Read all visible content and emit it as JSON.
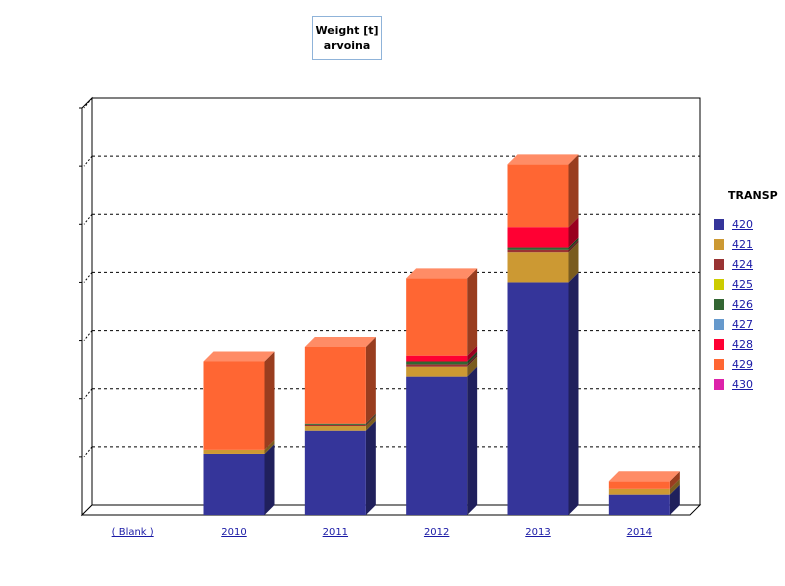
{
  "title": {
    "line1": "Weight [t]",
    "line2": "arvoina"
  },
  "legend_title": "TRANSP",
  "chart_data": {
    "type": "bar",
    "stacked": true,
    "three_d": true,
    "title": "Weight [t] arvoina",
    "xlabel": "",
    "ylabel": "",
    "ylim": [
      0,
      7
    ],
    "grid": true,
    "y_tick_labels_visible": false,
    "legend_position": "right",
    "legend_title": "TRANSP",
    "categories": [
      "( Blank )",
      "2010",
      "2011",
      "2012",
      "2013",
      "2014"
    ],
    "series": [
      {
        "name": "420",
        "color": "#35359a",
        "values": [
          0,
          1.05,
          1.45,
          2.38,
          4.0,
          0.35
        ]
      },
      {
        "name": "421",
        "color": "#cc9933",
        "values": [
          0,
          0.07,
          0.08,
          0.17,
          0.52,
          0.1
        ]
      },
      {
        "name": "424",
        "color": "#993333",
        "values": [
          0,
          0,
          0.02,
          0.04,
          0.04,
          0
        ]
      },
      {
        "name": "425",
        "color": "#cccc00",
        "values": [
          0,
          0,
          0,
          0,
          0,
          0
        ]
      },
      {
        "name": "426",
        "color": "#336633",
        "values": [
          0,
          0,
          0.02,
          0.05,
          0.04,
          0
        ]
      },
      {
        "name": "427",
        "color": "#6699cc",
        "values": [
          0,
          0,
          0,
          0,
          0,
          0
        ]
      },
      {
        "name": "428",
        "color": "#ff0033",
        "values": [
          0,
          0,
          0,
          0.1,
          0.35,
          0
        ]
      },
      {
        "name": "429",
        "color": "#ff6633",
        "values": [
          0,
          1.52,
          1.32,
          1.33,
          1.08,
          0.13
        ]
      },
      {
        "name": "430",
        "color": "#dd22aa",
        "values": [
          0,
          0,
          0,
          0,
          0,
          0
        ]
      }
    ]
  }
}
